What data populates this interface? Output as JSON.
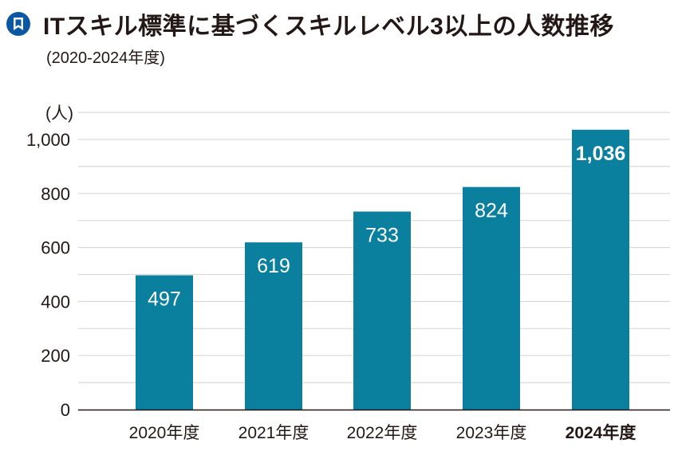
{
  "header": {
    "icon": "bookmark-icon",
    "icon_color": "#0a57a4",
    "title": "ITスキル標準に基づくスキルレベル3以上の人数推移",
    "subtitle": "(2020-2024年度)"
  },
  "chart_data": {
    "type": "bar",
    "title": "ITスキル標準に基づくスキルレベル3以上の人数推移",
    "subtitle": "(2020-2024年度)",
    "ylabel": "(人)",
    "xlabel": "",
    "categories": [
      "2020年度",
      "2021年度",
      "2022年度",
      "2023年度",
      "2024年度"
    ],
    "values": [
      497,
      619,
      733,
      824,
      1036
    ],
    "value_labels": [
      "497",
      "619",
      "733",
      "824",
      "1,036"
    ],
    "highlight_index": 4,
    "ylim": [
      0,
      1100
    ],
    "yticks": [
      0,
      200,
      400,
      600,
      800,
      1000
    ],
    "ytick_labels": [
      "0",
      "200",
      "400",
      "600",
      "800",
      "1,000"
    ],
    "grid": true,
    "grid_step": 100,
    "bar_color": "#0a7f9e",
    "grid_color": "#d9d9d9"
  }
}
